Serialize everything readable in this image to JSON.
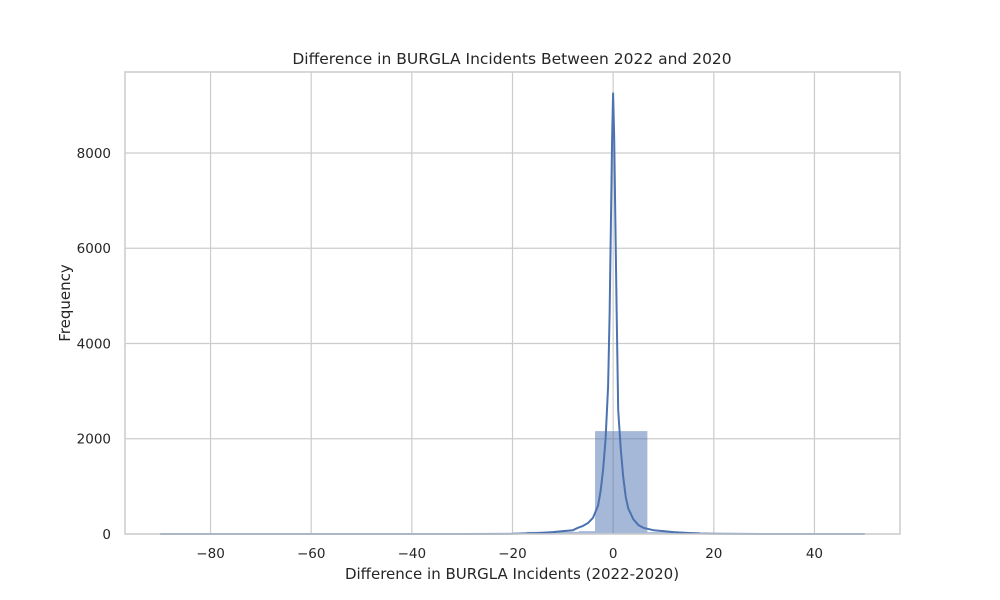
{
  "chart_data": {
    "type": "bar",
    "title": "Difference in BURGLA Incidents Between 2022 and 2020",
    "xlabel": "Difference in BURGLA Incidents (2022-2020)",
    "ylabel": "Frequency",
    "xlim": [
      -97,
      57
    ],
    "ylim": [
      0,
      9700
    ],
    "xticks": [
      -80,
      -60,
      -40,
      -20,
      0,
      20,
      40
    ],
    "xtick_labels": [
      "−80",
      "−60",
      "−40",
      "−20",
      "0",
      "20",
      "40"
    ],
    "yticks": [
      0,
      2000,
      4000,
      6000,
      8000
    ],
    "ytick_labels": [
      "0",
      "2000",
      "4000",
      "6000",
      "8000"
    ],
    "grid": true,
    "legend": "none",
    "colors": {
      "bar_fill": "#4c72b0",
      "kde_line": "#4c72b0"
    },
    "histogram_bins": [
      {
        "x0": -90,
        "x1": -79.6,
        "count": 1
      },
      {
        "x0": -79.6,
        "x1": -69.2,
        "count": 0
      },
      {
        "x0": -69.2,
        "x1": -58.8,
        "count": 0
      },
      {
        "x0": -58.8,
        "x1": -48.4,
        "count": 1
      },
      {
        "x0": -48.4,
        "x1": -38.0,
        "count": 0
      },
      {
        "x0": -38.0,
        "x1": -27.6,
        "count": 2
      },
      {
        "x0": -27.6,
        "x1": -17.2,
        "count": 6
      },
      {
        "x0": -17.2,
        "x1": -6.8,
        "count": 45
      },
      {
        "x0": -6.8,
        "x1": -3.6,
        "count": 60
      },
      {
        "x0": -3.6,
        "x1": 6.8,
        "count": 2160
      },
      {
        "x0": 6.8,
        "x1": 17.2,
        "count": 40
      },
      {
        "x0": 17.2,
        "x1": 27.6,
        "count": 6
      },
      {
        "x0": 27.6,
        "x1": 38.0,
        "count": 2
      },
      {
        "x0": 38.0,
        "x1": 48.4,
        "count": 1
      },
      {
        "x0": 48.4,
        "x1": 50.0,
        "count": 1
      }
    ],
    "kde": {
      "x": [
        -90,
        -60,
        -30,
        -20,
        -15,
        -12,
        -10,
        -8,
        -7,
        -6,
        -5,
        -4,
        -3,
        -2.5,
        -2,
        -1.5,
        -1,
        -0.7,
        -0.4,
        -0.2,
        0,
        0.2,
        0.4,
        0.7,
        1,
        1.5,
        2,
        2.5,
        3,
        4,
        5,
        6,
        8,
        10,
        12,
        15,
        17,
        20,
        30,
        50
      ],
      "y": [
        0,
        0,
        0,
        5,
        20,
        40,
        60,
        80,
        130,
        170,
        230,
        340,
        600,
        900,
        1350,
        2000,
        3100,
        4600,
        6800,
        8300,
        9250,
        8300,
        6800,
        4600,
        2600,
        1800,
        1200,
        780,
        540,
        310,
        190,
        130,
        80,
        60,
        40,
        20,
        10,
        5,
        0,
        0
      ]
    }
  }
}
